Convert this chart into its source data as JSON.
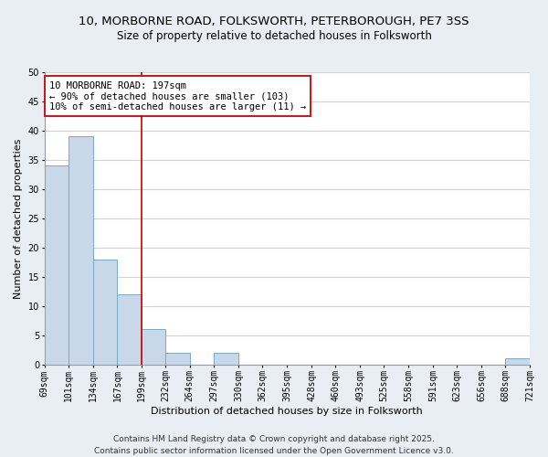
{
  "title": "10, MORBORNE ROAD, FOLKSWORTH, PETERBOROUGH, PE7 3SS",
  "subtitle": "Size of property relative to detached houses in Folksworth",
  "xlabel": "Distribution of detached houses by size in Folksworth",
  "ylabel": "Number of detached properties",
  "bar_left_edges": [
    69,
    101,
    134,
    167,
    199,
    232,
    264,
    297,
    330,
    362,
    395,
    428,
    460,
    493,
    525,
    558,
    591,
    623,
    656,
    688
  ],
  "bar_heights": [
    34,
    39,
    18,
    12,
    6,
    2,
    0,
    2,
    0,
    0,
    0,
    0,
    0,
    0,
    0,
    0,
    0,
    0,
    0,
    1
  ],
  "bin_width": 33,
  "bar_color": "#c8d8e8",
  "bar_edgecolor": "#7aa8c8",
  "vline_x": 199,
  "vline_color": "#cc0000",
  "ylim": [
    0,
    50
  ],
  "yticks": [
    0,
    5,
    10,
    15,
    20,
    25,
    30,
    35,
    40,
    45,
    50
  ],
  "xtick_labels": [
    "69sqm",
    "101sqm",
    "134sqm",
    "167sqm",
    "199sqm",
    "232sqm",
    "264sqm",
    "297sqm",
    "330sqm",
    "362sqm",
    "395sqm",
    "428sqm",
    "460sqm",
    "493sqm",
    "525sqm",
    "558sqm",
    "591sqm",
    "623sqm",
    "656sqm",
    "688sqm",
    "721sqm"
  ],
  "annotation_text": "10 MORBORNE ROAD: 197sqm\n← 90% of detached houses are smaller (103)\n10% of semi-detached houses are larger (11) →",
  "footer_line1": "Contains HM Land Registry data © Crown copyright and database right 2025.",
  "footer_line2": "Contains public sector information licensed under the Open Government Licence v3.0.",
  "background_color": "#e8eef4",
  "plot_bg_color": "#ffffff",
  "grid_color": "#c8d4de",
  "title_fontsize": 9.5,
  "subtitle_fontsize": 8.5,
  "xlabel_fontsize": 8,
  "ylabel_fontsize": 8,
  "tick_fontsize": 7,
  "annotation_fontsize": 7.5,
  "footer_fontsize": 6.5
}
